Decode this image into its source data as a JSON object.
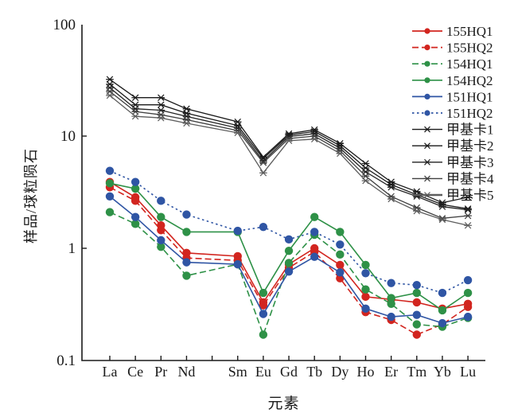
{
  "chart_data": {
    "type": "line",
    "title": "",
    "xlabel": "元素",
    "ylabel": "样品/球粒陨石",
    "y_scale": "log",
    "ylim": [
      0.1,
      100
    ],
    "y_ticks": [
      100,
      10,
      1,
      0.1
    ],
    "y_tick_labels": [
      "100",
      "10",
      "1",
      "0.1"
    ],
    "grid": false,
    "legend_position": "top-right",
    "categories": [
      "La",
      "Ce",
      "Pr",
      "Nd",
      "Sm",
      "Eu",
      "Gd",
      "Tb",
      "Dy",
      "Ho",
      "Er",
      "Tm",
      "Yb",
      "Lu"
    ],
    "category_slots": [
      0,
      1,
      2,
      3,
      5,
      6,
      7,
      8,
      9,
      10,
      11,
      12,
      13,
      14
    ],
    "n_slots": 15,
    "series": [
      {
        "name": "155HQ1",
        "color": "#d2251f",
        "dash": "solid",
        "marker": "circle",
        "values": [
          3.9,
          2.85,
          1.6,
          0.91,
          0.85,
          0.33,
          0.72,
          1.0,
          0.71,
          0.37,
          0.35,
          0.33,
          0.29,
          0.32
        ]
      },
      {
        "name": "155HQ2",
        "color": "#d2251f",
        "dash": "dashed",
        "marker": "circle",
        "values": [
          3.5,
          2.65,
          1.45,
          0.82,
          0.78,
          0.31,
          0.67,
          0.93,
          0.54,
          0.27,
          0.23,
          0.17,
          0.21,
          0.3
        ]
      },
      {
        "name": "154HQ1",
        "color": "#2e9147",
        "dash": "dashed",
        "marker": "circle",
        "values": [
          2.1,
          1.65,
          1.03,
          0.57,
          0.72,
          0.17,
          0.74,
          1.32,
          0.88,
          0.43,
          0.32,
          0.21,
          0.2,
          0.24
        ]
      },
      {
        "name": "154HQ2",
        "color": "#2e9147",
        "dash": "solid",
        "marker": "circle",
        "values": [
          3.8,
          3.4,
          1.9,
          1.4,
          1.4,
          0.4,
          0.95,
          1.9,
          1.4,
          0.71,
          0.36,
          0.4,
          0.28,
          0.4
        ]
      },
      {
        "name": "151HQ1",
        "color": "#2f55a4",
        "dash": "solid",
        "marker": "circle",
        "values": [
          2.9,
          1.9,
          1.18,
          0.75,
          0.72,
          0.26,
          0.62,
          0.84,
          0.61,
          0.29,
          0.245,
          0.255,
          0.215,
          0.245
        ]
      },
      {
        "name": "151HQ2",
        "color": "#2f55a4",
        "dash": "dotted",
        "marker": "circle",
        "values": [
          4.9,
          3.9,
          2.65,
          2.0,
          1.43,
          1.55,
          1.2,
          1.4,
          1.08,
          0.6,
          0.49,
          0.47,
          0.4,
          0.52
        ]
      },
      {
        "name": "甲基卡1",
        "color": "#1a1a1a",
        "dash": "solid",
        "marker": "x",
        "values": [
          32,
          22,
          22,
          17.5,
          13.4,
          6.5,
          10.5,
          11.4,
          8.6,
          5.7,
          3.9,
          3.2,
          2.55,
          2.85
        ]
      },
      {
        "name": "甲基卡2",
        "color": "#1a1a1a",
        "dash": "solid",
        "marker": "x",
        "values": [
          29,
          19,
          19,
          16,
          12.4,
          6.3,
          10.2,
          11.0,
          8.2,
          5.2,
          3.7,
          3.0,
          2.45,
          2.25
        ]
      },
      {
        "name": "甲基卡3",
        "color": "#222222",
        "dash": "solid",
        "marker": "x",
        "values": [
          27,
          17.5,
          17,
          15,
          11.8,
          6.0,
          9.9,
          10.5,
          7.8,
          4.8,
          3.5,
          2.9,
          2.35,
          2.2
        ]
      },
      {
        "name": "甲基卡4",
        "color": "#3f3f3f",
        "dash": "solid",
        "marker": "x",
        "values": [
          25,
          16.5,
          15.5,
          14,
          11.2,
          5.8,
          9.5,
          10.0,
          7.4,
          4.4,
          2.9,
          2.3,
          1.85,
          1.95
        ]
      },
      {
        "name": "甲基卡5",
        "color": "#5d5d5d",
        "dash": "solid",
        "marker": "x",
        "values": [
          23,
          15,
          14.5,
          13,
          10.7,
          4.7,
          9.1,
          9.4,
          7.0,
          4.0,
          2.75,
          2.15,
          1.8,
          1.6
        ]
      }
    ]
  }
}
